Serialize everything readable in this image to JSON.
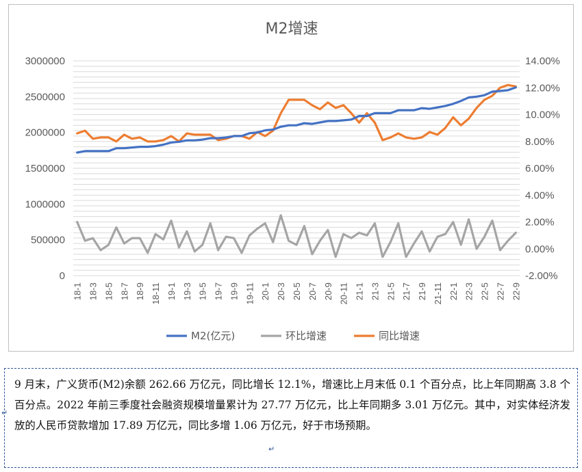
{
  "chart_data": {
    "type": "line",
    "title": "M2增速",
    "x": [
      "18-1",
      "18-2",
      "18-3",
      "18-4",
      "18-5",
      "18-6",
      "18-7",
      "18-8",
      "18-9",
      "18-10",
      "18-11",
      "18-12",
      "19-1",
      "19-2",
      "19-3",
      "19-4",
      "19-5",
      "19-6",
      "19-7",
      "19-8",
      "19-9",
      "19-10",
      "19-11",
      "19-12",
      "20-1",
      "20-2",
      "20-3",
      "20-4",
      "20-5",
      "20-6",
      "20-7",
      "20-8",
      "20-9",
      "20-10",
      "20-11",
      "20-12",
      "21-1",
      "21-2",
      "21-3",
      "21-4",
      "21-5",
      "21-6",
      "21-7",
      "21-8",
      "21-9",
      "21-10",
      "21-11",
      "21-12",
      "22-1",
      "22-2",
      "22-3",
      "22-4",
      "22-5",
      "22-6",
      "22-7",
      "22-8",
      "22-9"
    ],
    "x_tick_labels": [
      "18-1",
      "18-3",
      "18-5",
      "18-7",
      "18-9",
      "18-11",
      "19-1",
      "19-3",
      "19-5",
      "19-7",
      "19-9",
      "19-11",
      "20-1",
      "20-3",
      "20-5",
      "20-7",
      "20-9",
      "20-11",
      "21-1",
      "21-3",
      "21-5",
      "21-7",
      "21-9",
      "21-11",
      "22-1",
      "22-3",
      "22-5",
      "22-7",
      "22-9"
    ],
    "y_left_ticks": [
      "3000000",
      "2500000",
      "2000000",
      "1500000",
      "1000000",
      "500000",
      "0"
    ],
    "y_right_ticks": [
      "14.00%",
      "12.00%",
      "10.00%",
      "8.00%",
      "6.00%",
      "4.00%",
      "2.00%",
      "0.00%",
      "-2.00%"
    ],
    "y_left_range": [
      0,
      3000000
    ],
    "y_right_range": [
      -2,
      14
    ],
    "grid": true,
    "legend_position": "bottom",
    "series": [
      {
        "name": "M2(亿元)",
        "axis": "left",
        "color": "#4472c4",
        "values": [
          1720000,
          1740000,
          1740000,
          1740000,
          1740000,
          1780000,
          1780000,
          1790000,
          1800000,
          1800000,
          1810000,
          1830000,
          1860000,
          1870000,
          1890000,
          1890000,
          1900000,
          1920000,
          1920000,
          1930000,
          1950000,
          1950000,
          1990000,
          2000000,
          2030000,
          2040000,
          2080000,
          2100000,
          2100000,
          2130000,
          2120000,
          2140000,
          2160000,
          2160000,
          2170000,
          2180000,
          2230000,
          2230000,
          2270000,
          2270000,
          2270000,
          2310000,
          2310000,
          2310000,
          2340000,
          2330000,
          2350000,
          2370000,
          2400000,
          2440000,
          2490000,
          2500000,
          2520000,
          2570000,
          2580000,
          2590000,
          2630000
        ]
      },
      {
        "name": "环比增速",
        "axis": "right",
        "color": "#a5a5a5",
        "values": [
          2.0,
          0.6,
          0.8,
          -0.1,
          0.3,
          1.6,
          0.4,
          0.8,
          0.8,
          -0.3,
          1.1,
          0.7,
          2.1,
          0.1,
          1.3,
          -0.2,
          0.3,
          1.9,
          -0.1,
          0.9,
          0.8,
          -0.3,
          1.0,
          1.5,
          1.9,
          0.5,
          2.5,
          0.6,
          0.3,
          1.7,
          -0.4,
          0.6,
          1.4,
          -0.6,
          1.1,
          0.8,
          1.2,
          1.0,
          1.9,
          -0.6,
          0.5,
          1.9,
          -0.6,
          0.4,
          1.3,
          -0.2,
          0.9,
          1.1,
          2.0,
          0.3,
          2.2,
          0.0,
          0.9,
          2.1,
          -0.1,
          0.6,
          1.2
        ]
      },
      {
        "name": "同比增速",
        "axis": "right",
        "color": "#ed7d31",
        "values": [
          8.6,
          8.8,
          8.2,
          8.3,
          8.3,
          8.0,
          8.5,
          8.2,
          8.3,
          8.0,
          8.0,
          8.1,
          8.4,
          8.0,
          8.6,
          8.5,
          8.5,
          8.5,
          8.1,
          8.2,
          8.4,
          8.4,
          8.2,
          8.7,
          8.4,
          8.8,
          10.1,
          11.1,
          11.1,
          11.1,
          10.7,
          10.4,
          10.9,
          10.5,
          10.7,
          10.1,
          9.4,
          10.1,
          9.4,
          8.1,
          8.3,
          8.6,
          8.3,
          8.2,
          8.3,
          8.7,
          8.5,
          9.0,
          9.8,
          9.2,
          9.7,
          10.5,
          11.1,
          11.4,
          12.0,
          12.2,
          12.1
        ]
      }
    ]
  },
  "note": {
    "text": "9 月末，广义货币(M2)余额 262.66 万亿元，同比增长 12.1%，增速比上月末低 0.1 个百分点，比上年同期高 3.8 个百分点。2022 年前三季度社会融资规模增量累计为 27.77 万亿元，比上年同期多 3.01 万亿元。其中，对实体经济发放的人民币贷款增加 17.89 万亿元，同比多增 1.06 万亿元，好于市场预期。"
  }
}
